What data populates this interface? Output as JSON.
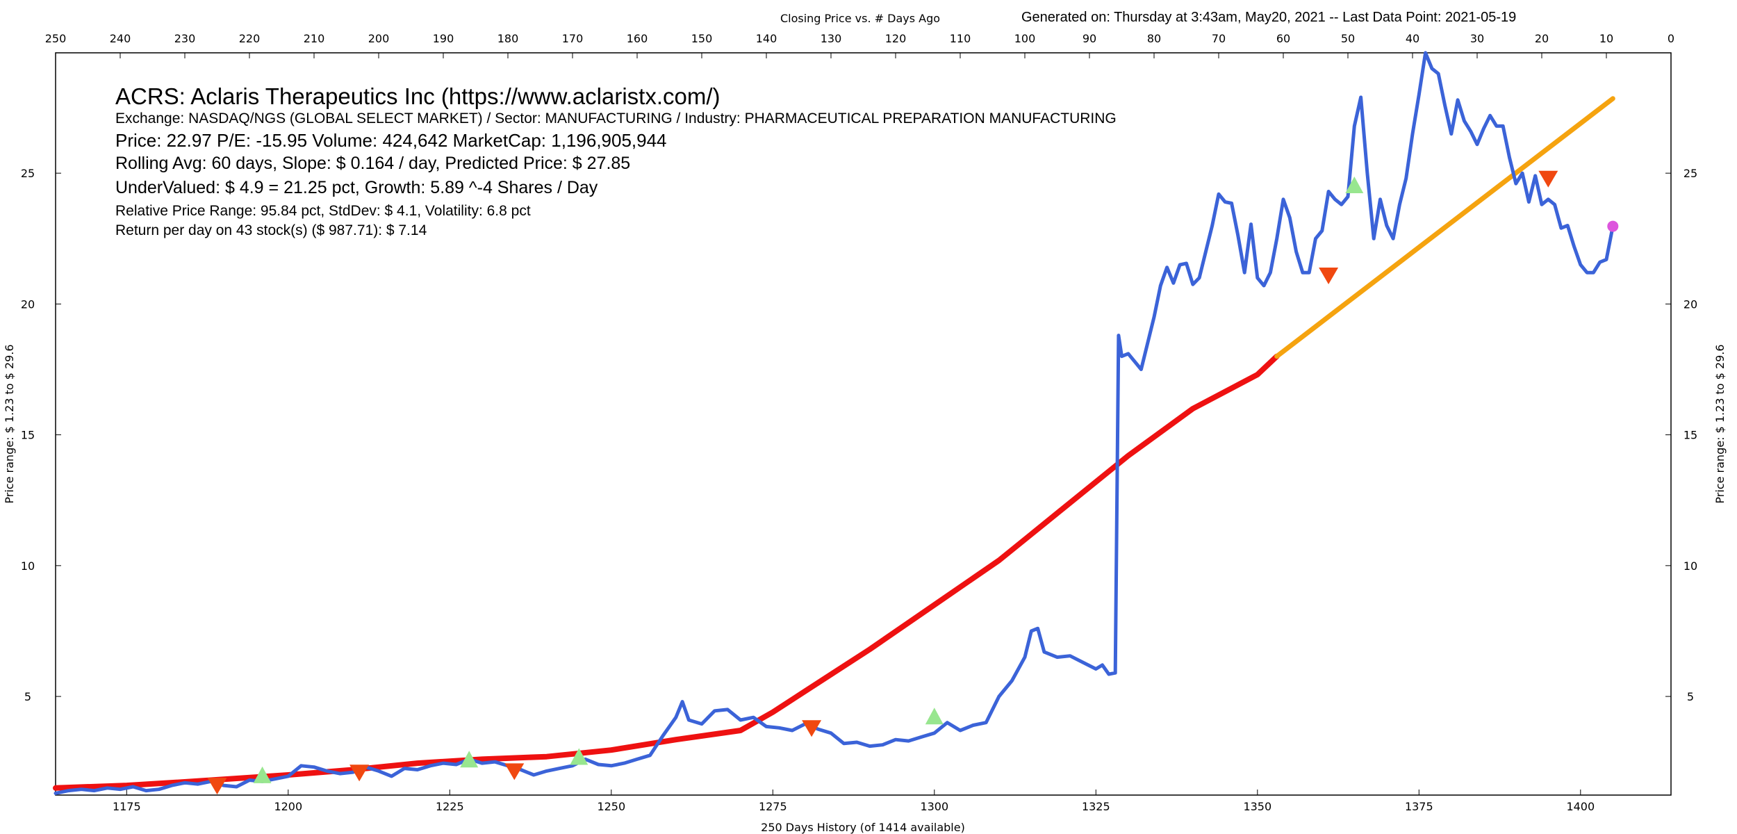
{
  "header": {
    "top_title": "Closing Price vs. # Days Ago",
    "generated": "Generated on:  Thursday at  3:43am, May20, 2021  --  Last Data Point:  2021-05-19"
  },
  "info": {
    "title": "ACRS:  Aclaris Therapeutics Inc  (https://www.aclaristx.com/)",
    "exchange": "Exchange: NASDAQ/NGS (GLOBAL SELECT MARKET)  /  Sector: MANUFACTURING  /  Industry: PHARMACEUTICAL PREPARATION MANUFACTURING",
    "price": "Price: 22.97  P/E: -15.95 Volume: 424,642  MarketCap: 1,196,905,944",
    "rolling": "Rolling Avg: 60 days, Slope: $ 0.164 / day, Predicted Price: $ 27.85",
    "undervalued": "UnderValued: $ 4.9 = 21.25 pct,  Growth: 5.89 ^-4 Shares / Day",
    "range": "Relative Price Range: 95.84 pct, StdDev: $ 4.1, Volatility: 6.8 pct",
    "return": "Return per day on 43 stock(s) ($ 987.71): $ 7.14"
  },
  "chart_data": {
    "type": "line",
    "title": "Closing Price vs. # Days Ago",
    "xlabel": "250 Days History (of 1414 available)",
    "ylabel_left": "Price range:  $ 1.23  to  $ 29.6",
    "ylabel_right": "Price range:  $ 1.23  to  $ 29.6",
    "xlim": [
      1164,
      1414
    ],
    "x2lim": [
      250,
      0
    ],
    "ylim": [
      1.23,
      29.6
    ],
    "x_ticks": [
      1175,
      1200,
      1225,
      1250,
      1275,
      1300,
      1325,
      1350,
      1375,
      1400
    ],
    "x2_ticks": [
      250,
      240,
      230,
      220,
      210,
      200,
      190,
      180,
      170,
      160,
      150,
      140,
      130,
      120,
      110,
      100,
      90,
      80,
      70,
      60,
      50,
      40,
      30,
      20,
      10,
      0
    ],
    "y_ticks": [
      5,
      10,
      15,
      20,
      25
    ],
    "colors": {
      "price": "#3b63d8",
      "rolling_avg": "#ee1111",
      "prediction": "#f5a30f",
      "buy": "#98e68f",
      "sell": "#f04810",
      "current": "#dd55dd"
    },
    "series": [
      {
        "name": "price",
        "points": [
          [
            1164,
            1.3
          ],
          [
            1166,
            1.4
          ],
          [
            1168,
            1.45
          ],
          [
            1170,
            1.4
          ],
          [
            1172,
            1.5
          ],
          [
            1174,
            1.45
          ],
          [
            1176,
            1.55
          ],
          [
            1178,
            1.4
          ],
          [
            1180,
            1.45
          ],
          [
            1182,
            1.6
          ],
          [
            1184,
            1.7
          ],
          [
            1186,
            1.65
          ],
          [
            1188,
            1.75
          ],
          [
            1190,
            1.6
          ],
          [
            1192,
            1.55
          ],
          [
            1194,
            1.8
          ],
          [
            1196,
            1.75
          ],
          [
            1198,
            1.85
          ],
          [
            1200,
            1.95
          ],
          [
            1202,
            2.35
          ],
          [
            1204,
            2.3
          ],
          [
            1206,
            2.15
          ],
          [
            1208,
            2.05
          ],
          [
            1210,
            2.1
          ],
          [
            1212,
            2.3
          ],
          [
            1214,
            2.15
          ],
          [
            1216,
            1.95
          ],
          [
            1218,
            2.25
          ],
          [
            1220,
            2.2
          ],
          [
            1222,
            2.35
          ],
          [
            1224,
            2.45
          ],
          [
            1226,
            2.4
          ],
          [
            1228,
            2.6
          ],
          [
            1230,
            2.45
          ],
          [
            1232,
            2.5
          ],
          [
            1234,
            2.35
          ],
          [
            1236,
            2.2
          ],
          [
            1238,
            2.0
          ],
          [
            1240,
            2.15
          ],
          [
            1242,
            2.25
          ],
          [
            1244,
            2.35
          ],
          [
            1246,
            2.6
          ],
          [
            1248,
            2.4
          ],
          [
            1250,
            2.35
          ],
          [
            1252,
            2.45
          ],
          [
            1254,
            2.6
          ],
          [
            1256,
            2.75
          ],
          [
            1258,
            3.5
          ],
          [
            1260,
            4.2
          ],
          [
            1261,
            4.8
          ],
          [
            1262,
            4.1
          ],
          [
            1264,
            3.95
          ],
          [
            1266,
            4.45
          ],
          [
            1268,
            4.5
          ],
          [
            1270,
            4.1
          ],
          [
            1272,
            4.2
          ],
          [
            1274,
            3.85
          ],
          [
            1276,
            3.8
          ],
          [
            1278,
            3.7
          ],
          [
            1280,
            3.95
          ],
          [
            1282,
            3.75
          ],
          [
            1284,
            3.6
          ],
          [
            1286,
            3.2
          ],
          [
            1288,
            3.25
          ],
          [
            1290,
            3.1
          ],
          [
            1292,
            3.15
          ],
          [
            1294,
            3.35
          ],
          [
            1296,
            3.3
          ],
          [
            1298,
            3.45
          ],
          [
            1300,
            3.6
          ],
          [
            1302,
            4.0
          ],
          [
            1304,
            3.7
          ],
          [
            1306,
            3.9
          ],
          [
            1308,
            4.0
          ],
          [
            1310,
            5.0
          ],
          [
            1312,
            5.6
          ],
          [
            1314,
            6.5
          ],
          [
            1315,
            7.5
          ],
          [
            1316,
            7.6
          ],
          [
            1317,
            6.7
          ],
          [
            1319,
            6.5
          ],
          [
            1321,
            6.55
          ],
          [
            1323,
            6.3
          ],
          [
            1325,
            6.05
          ],
          [
            1326,
            6.2
          ],
          [
            1327,
            5.85
          ],
          [
            1328,
            5.9
          ],
          [
            1328.5,
            18.8
          ],
          [
            1329,
            18.0
          ],
          [
            1330,
            18.1
          ],
          [
            1331,
            17.8
          ],
          [
            1332,
            17.5
          ],
          [
            1334,
            19.5
          ],
          [
            1335,
            20.7
          ],
          [
            1336,
            21.4
          ],
          [
            1337,
            20.8
          ],
          [
            1338,
            21.5
          ],
          [
            1339,
            21.55
          ],
          [
            1340,
            20.75
          ],
          [
            1341,
            21.0
          ],
          [
            1342,
            22.0
          ],
          [
            1343,
            23.0
          ],
          [
            1344,
            24.2
          ],
          [
            1345,
            23.9
          ],
          [
            1346,
            23.85
          ],
          [
            1347,
            22.6
          ],
          [
            1348,
            21.2
          ],
          [
            1349,
            23.05
          ],
          [
            1350,
            21.0
          ],
          [
            1351,
            20.7
          ],
          [
            1352,
            21.2
          ],
          [
            1353,
            22.5
          ],
          [
            1354,
            24.0
          ],
          [
            1355,
            23.3
          ],
          [
            1356,
            22.0
          ],
          [
            1357,
            21.2
          ],
          [
            1358,
            21.2
          ],
          [
            1359,
            22.5
          ],
          [
            1360,
            22.8
          ],
          [
            1361,
            24.3
          ],
          [
            1362,
            24.0
          ],
          [
            1363,
            23.8
          ],
          [
            1364,
            24.1
          ],
          [
            1365,
            26.8
          ],
          [
            1366,
            27.9
          ],
          [
            1367,
            25.0
          ],
          [
            1368,
            22.5
          ],
          [
            1369,
            24.0
          ],
          [
            1370,
            23.0
          ],
          [
            1371,
            22.5
          ],
          [
            1372,
            23.8
          ],
          [
            1373,
            24.8
          ],
          [
            1374,
            26.5
          ],
          [
            1375,
            28.0
          ],
          [
            1376,
            29.6
          ],
          [
            1377,
            29.0
          ],
          [
            1378,
            28.8
          ],
          [
            1379,
            27.6
          ],
          [
            1380,
            26.5
          ],
          [
            1381,
            27.8
          ],
          [
            1382,
            27.0
          ],
          [
            1383,
            26.6
          ],
          [
            1384,
            26.1
          ],
          [
            1385,
            26.7
          ],
          [
            1386,
            27.2
          ],
          [
            1387,
            26.8
          ],
          [
            1388,
            26.8
          ],
          [
            1389,
            25.6
          ],
          [
            1390,
            24.6
          ],
          [
            1391,
            25.0
          ],
          [
            1392,
            23.9
          ],
          [
            1393,
            24.9
          ],
          [
            1394,
            23.8
          ],
          [
            1395,
            24.0
          ],
          [
            1396,
            23.8
          ],
          [
            1397,
            22.9
          ],
          [
            1398,
            23.0
          ],
          [
            1399,
            22.2
          ],
          [
            1400,
            21.5
          ],
          [
            1401,
            21.2
          ],
          [
            1402,
            21.2
          ],
          [
            1403,
            21.6
          ],
          [
            1404,
            21.7
          ],
          [
            1405,
            22.97
          ]
        ]
      },
      {
        "name": "rolling_avg",
        "points": [
          [
            1164,
            1.5
          ],
          [
            1175,
            1.6
          ],
          [
            1185,
            1.75
          ],
          [
            1200,
            2.0
          ],
          [
            1210,
            2.2
          ],
          [
            1220,
            2.45
          ],
          [
            1230,
            2.6
          ],
          [
            1240,
            2.7
          ],
          [
            1250,
            2.95
          ],
          [
            1260,
            3.35
          ],
          [
            1270,
            3.7
          ],
          [
            1275,
            4.4
          ],
          [
            1280,
            5.2
          ],
          [
            1285,
            6.0
          ],
          [
            1290,
            6.8
          ],
          [
            1300,
            8.5
          ],
          [
            1310,
            10.2
          ],
          [
            1315,
            11.2
          ],
          [
            1320,
            12.2
          ],
          [
            1330,
            14.2
          ],
          [
            1340,
            16.0
          ],
          [
            1350,
            17.3
          ],
          [
            1353,
            18.0
          ]
        ]
      },
      {
        "name": "prediction",
        "points": [
          [
            1353,
            18.0
          ],
          [
            1405,
            27.85
          ]
        ]
      }
    ],
    "markers": {
      "buy": [
        [
          1196,
          1.95
        ],
        [
          1228,
          2.55
        ],
        [
          1245,
          2.65
        ],
        [
          1300,
          4.2
        ],
        [
          1365,
          24.5
        ]
      ],
      "sell": [
        [
          1189,
          1.6
        ],
        [
          1211,
          2.1
        ],
        [
          1235,
          2.15
        ],
        [
          1281,
          3.8
        ],
        [
          1361,
          21.1
        ],
        [
          1395,
          24.8
        ]
      ],
      "current": [
        [
          1405,
          22.97
        ]
      ]
    }
  }
}
